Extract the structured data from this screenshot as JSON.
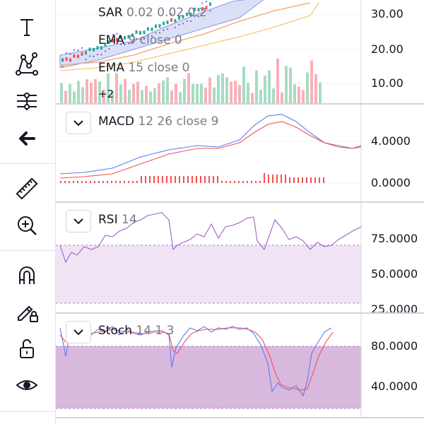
{
  "toolbar": {
    "items": [
      {
        "name": "text-tool",
        "icon": "text-icon",
        "glyph": "T"
      },
      {
        "name": "pattern-tool",
        "icon": "pattern-icon"
      },
      {
        "name": "prediction-tool",
        "icon": "prediction-icon"
      },
      {
        "name": "back-tool",
        "icon": "arrow-left-icon"
      },
      {
        "name": "measure-tool",
        "icon": "ruler-icon"
      },
      {
        "name": "zoom-tool",
        "icon": "zoom-in-icon"
      },
      {
        "name": "magnet-tool",
        "icon": "magnet-icon"
      },
      {
        "name": "lock-drawing-tool",
        "icon": "pencil-lock-icon"
      },
      {
        "name": "lock-tool",
        "icon": "lock-open-icon"
      },
      {
        "name": "visibility-tool",
        "icon": "eye-icon"
      }
    ]
  },
  "main_pane": {
    "legend": [
      {
        "name": "SAR",
        "params": "0.02 0.02 0.2"
      },
      {
        "name": "EMA",
        "params": "9 close 0"
      },
      {
        "name": "EMA",
        "params": "15 close 0"
      }
    ],
    "more_label": "+2",
    "axis": [
      "30.00",
      "20.00",
      "10.00"
    ],
    "colors": {
      "band": "#c5cbf0",
      "ema_fast": "#f4a261",
      "ema_slow": "#f7c66b",
      "sar": "#7e57c2",
      "up": "#26a69a",
      "down": "#ef5350"
    }
  },
  "macd_pane": {
    "name": "MACD",
    "params": "12 26 close 9",
    "axis": [
      "4.0000",
      "0.0000"
    ],
    "colors": {
      "macd": "#5b7cf0",
      "signal": "#ef5350",
      "hist": "#ef5350"
    }
  },
  "rsi_pane": {
    "name": "RSI",
    "params": "14",
    "axis": [
      "75.0000",
      "50.0000",
      "25.0000"
    ],
    "colors": {
      "line": "#9c5fc9",
      "band": "#f0e4f4"
    }
  },
  "stoch_pane": {
    "name": "Stoch",
    "params": "14 1 3",
    "axis": [
      "80.0000",
      "40.0000"
    ],
    "colors": {
      "k": "#5b7cf0",
      "d": "#ef5350",
      "band": "#d9b8dd"
    }
  }
}
